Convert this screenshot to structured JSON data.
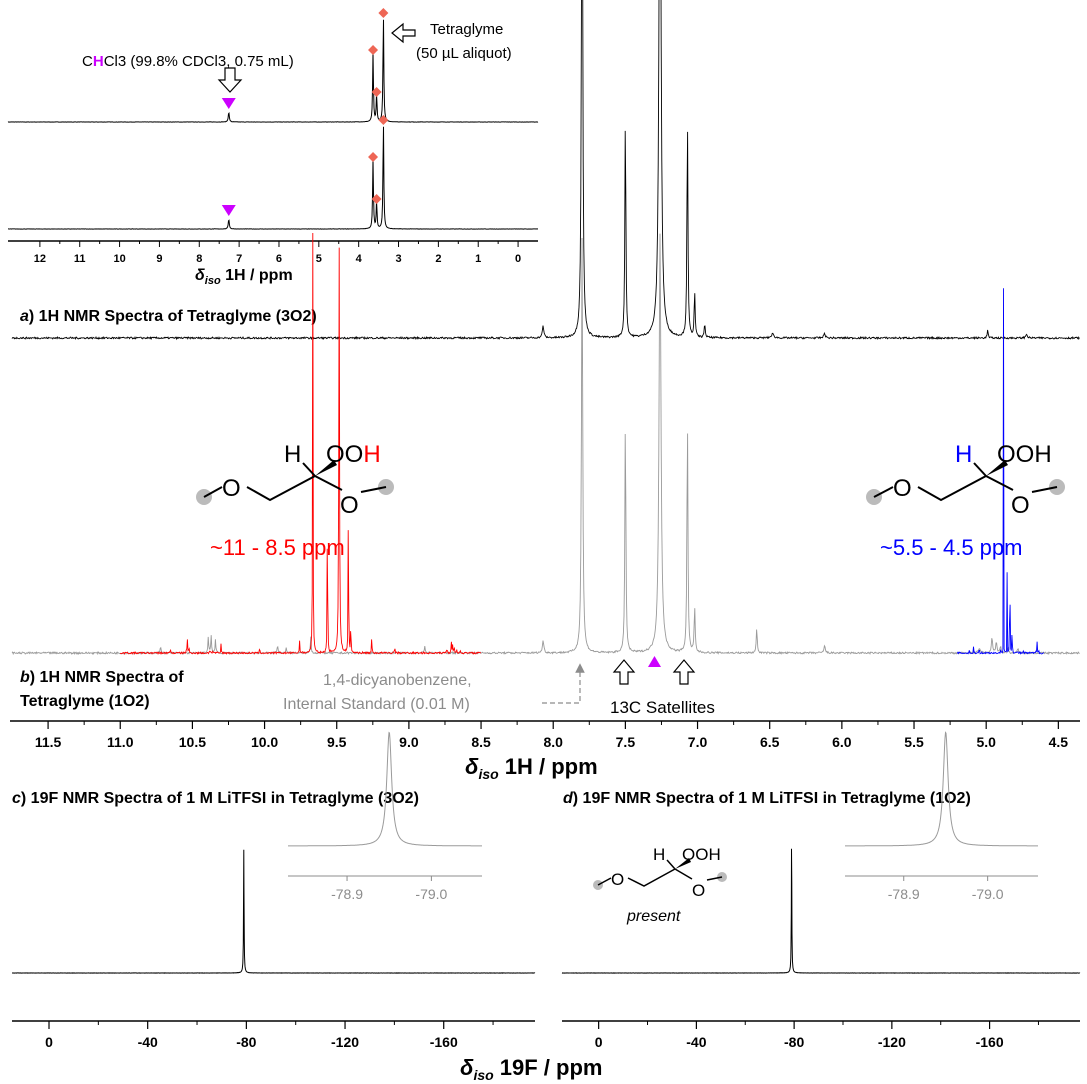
{
  "colors": {
    "spectrum_a": "#000000",
    "spectrum_b": "#9a9a9a",
    "region_red": "#ff0000",
    "region_blue": "#0000ff",
    "chcl3_marker": "#cc00ff",
    "glyme_marker": "#ee6655",
    "standard_label": "#8c8c8c"
  },
  "inset_top": {
    "ticks": [
      "12",
      "11",
      "10",
      "9",
      "8",
      "7",
      "6",
      "5",
      "4",
      "3",
      "2",
      "1",
      "0"
    ],
    "axis_title_main": "iso",
    "axis_title_delta": "δ",
    "axis_title_rest": " 1H / ppm",
    "chcl3_label_pre": "C",
    "chcl3_label_h": "H",
    "chcl3_label_post": "Cl3 (99.8% CDCl3, 0.75 mL)",
    "tetraglyme_label_1": "Tetraglyme",
    "tetraglyme_label_2": "(50 µL aliquot)"
  },
  "panel_a": {
    "letter": "a",
    "title": ") 1H NMR Spectra of Tetraglyme (3O2)"
  },
  "panel_b": {
    "letter": "b",
    "title_1": ") 1H NMR Spectra of",
    "title_2": "Tetraglyme (1O2)",
    "left_structure": {
      "h": "H",
      "ooh_prefix": "OO",
      "ooh_h": "H",
      "o1": "O",
      "o2": "O"
    },
    "right_structure": {
      "h": "H",
      "ooh": "OOH",
      "o1": "O",
      "o2": "O"
    },
    "range_red": "~11 - 8.5 ppm",
    "range_blue": "~5.5 - 4.5 ppm",
    "standard_1": "1,4-dicyanobenzene,",
    "standard_2": "Internal Standard (0.01 M)",
    "satellites": "13C Satellites"
  },
  "main_axis": {
    "ticks": [
      "11.5",
      "11.0",
      "10.5",
      "10.0",
      "9.5",
      "9.0",
      "8.5",
      "8.0",
      "7.5",
      "7.0",
      "6.5",
      "6.0",
      "5.5",
      "5.0",
      "4.5"
    ],
    "title_delta": "δ",
    "title_sub": "iso",
    "title_rest": " 1H / ppm"
  },
  "panel_c": {
    "letter": "c",
    "title": ") 19F NMR Spectra of 1 M LiTFSI in Tetraglyme (3O2)",
    "ticks": [
      "0",
      "-40",
      "-80",
      "-120",
      "-160"
    ],
    "inset_ticks": [
      "-78.9",
      "-79.0"
    ]
  },
  "panel_d": {
    "letter": "d",
    "title": ") 19F NMR Spectra of 1 M LiTFSI in Tetraglyme (1O2)",
    "ticks": [
      "0",
      "-40",
      "-80",
      "-120",
      "-160"
    ],
    "inset_ticks": [
      "-78.9",
      "-79.0"
    ],
    "structure": {
      "h": "H",
      "ooh": "OOH",
      "o1": "O",
      "o2": "O"
    },
    "present": "present"
  },
  "bottom_axis": {
    "title_delta": "δ",
    "title_sub": "iso",
    "title_rest": " 19F / ppm"
  },
  "chart_data": [
    {
      "type": "line",
      "name": "inset 1H NMR of tetraglyme",
      "xlim": [
        12.8,
        -0.5
      ],
      "peaks_ppm": [
        7.26,
        3.64,
        3.55,
        3.38
      ]
    },
    {
      "type": "line",
      "name": "panel a and b 1H NMR",
      "xlim": [
        11.75,
        4.35
      ],
      "peaks_ppm": [
        8.07,
        7.8,
        7.5,
        7.26,
        7.07,
        7.02,
        6.95,
        6.59,
        6.12,
        4.99
      ],
      "highlight_ranges_ppm": [
        [
          11.0,
          8.5
        ],
        [
          5.2,
          4.6
        ]
      ]
    },
    {
      "type": "line",
      "name": "19F NMR",
      "xlim": [
        15,
        -197
      ],
      "peak_ppm": -78.95,
      "inset_xlim": [
        -78.83,
        -79.06
      ]
    }
  ]
}
